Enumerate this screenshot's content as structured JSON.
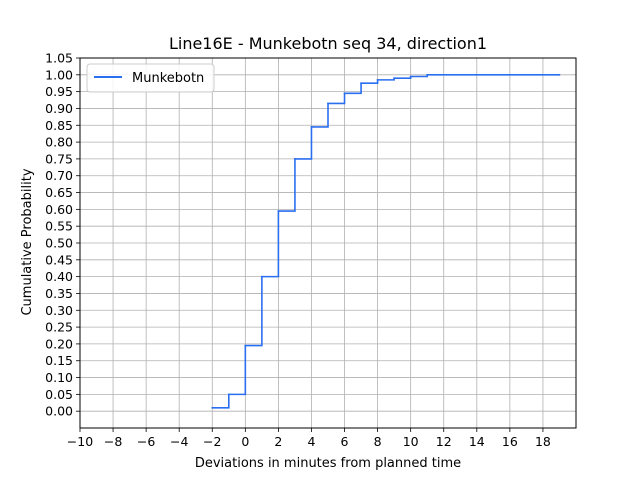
{
  "chart_data": {
    "type": "line",
    "step": "post",
    "title": "Line16E - Munkebotn seq 34, direction1",
    "xlabel": "Deviations in minutes from planned time",
    "ylabel": "Cumulative Probability",
    "xlim": [
      -10,
      20
    ],
    "ylim": [
      -0.05,
      1.05
    ],
    "xticks": [
      -10,
      -8,
      -6,
      -4,
      -2,
      0,
      2,
      4,
      6,
      8,
      10,
      12,
      14,
      16,
      18
    ],
    "xtick_labels": [
      "−10",
      "−8",
      "−6",
      "−4",
      "−2",
      "0",
      "2",
      "4",
      "6",
      "8",
      "10",
      "12",
      "14",
      "16",
      "18"
    ],
    "yticks": [
      0.0,
      0.05,
      0.1,
      0.15,
      0.2,
      0.25,
      0.3,
      0.35,
      0.4,
      0.45,
      0.5,
      0.55,
      0.6,
      0.65,
      0.7,
      0.75,
      0.8,
      0.85,
      0.9,
      0.95,
      1.0,
      1.05
    ],
    "ytick_labels": [
      "0.00",
      "0.05",
      "0.10",
      "0.15",
      "0.20",
      "0.25",
      "0.30",
      "0.35",
      "0.40",
      "0.45",
      "0.50",
      "0.55",
      "0.60",
      "0.65",
      "0.70",
      "0.75",
      "0.80",
      "0.85",
      "0.90",
      "0.95",
      "1.00",
      "1.05"
    ],
    "grid": true,
    "legend": {
      "position": "top-left"
    },
    "series": [
      {
        "name": "Munkebotn",
        "color": "#2a6ff0",
        "x": [
          -2,
          -1,
          0,
          1,
          2,
          3,
          4,
          5,
          6,
          7,
          8,
          9,
          10,
          11,
          19
        ],
        "y": [
          0.01,
          0.05,
          0.195,
          0.4,
          0.595,
          0.75,
          0.845,
          0.915,
          0.945,
          0.975,
          0.985,
          0.99,
          0.995,
          1.0,
          1.0
        ]
      }
    ]
  }
}
